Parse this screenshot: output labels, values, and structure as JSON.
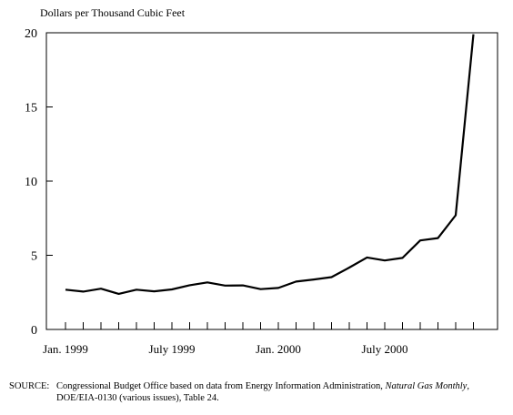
{
  "chart_data": {
    "type": "line",
    "ylabel": "Dollars per Thousand Cubic Feet",
    "xlabel": "",
    "title": "",
    "ylim": [
      0,
      20
    ],
    "yticks": [
      "0",
      "5",
      "10",
      "15",
      "20"
    ],
    "xtick_labels": [
      {
        "month_index": 0,
        "label": "Jan. 1999"
      },
      {
        "month_index": 6,
        "label": "July 1999"
      },
      {
        "month_index": 12,
        "label": "Jan. 2000"
      },
      {
        "month_index": 18,
        "label": "July 2000"
      }
    ],
    "x": [
      "Jan 1999",
      "Feb 1999",
      "Mar 1999",
      "Apr 1999",
      "May 1999",
      "Jun 1999",
      "Jul 1999",
      "Aug 1999",
      "Sep 1999",
      "Oct 1999",
      "Nov 1999",
      "Dec 1999",
      "Jan 2000",
      "Feb 2000",
      "Mar 2000",
      "Apr 2000",
      "May 2000",
      "Jun 2000",
      "Jul 2000",
      "Aug 2000",
      "Sep 2000",
      "Oct 2000",
      "Nov 2000",
      "Dec 2000"
    ],
    "series": [
      {
        "name": "",
        "values": [
          2.68,
          2.55,
          2.75,
          2.4,
          2.68,
          2.57,
          2.7,
          2.98,
          3.17,
          2.96,
          2.97,
          2.72,
          2.8,
          3.23,
          3.37,
          3.53,
          4.17,
          4.85,
          4.65,
          4.82,
          6.0,
          6.16,
          7.7,
          19.9
        ]
      }
    ],
    "grid": false,
    "colors": {
      "line": "#000000",
      "axis": "#000000"
    }
  },
  "source": {
    "label": "SOURCE:",
    "text_before": "Congressional Budget Office based on data from Energy Information Administration, ",
    "italic": "Natural Gas Monthly",
    "text_after": ",",
    "line2": "DOE/EIA-0130 (various issues), Table 24."
  }
}
